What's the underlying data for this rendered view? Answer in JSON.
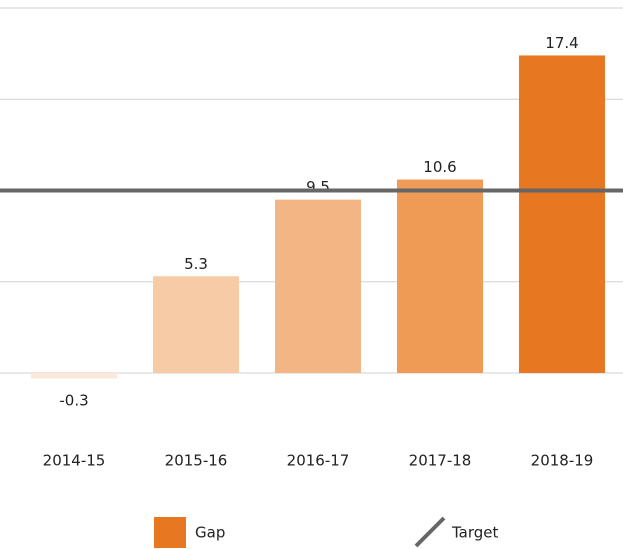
{
  "chart_data": {
    "type": "bar",
    "categories": [
      "2014-15",
      "2015-16",
      "2016-17",
      "2017-18",
      "2018-19"
    ],
    "series": [
      {
        "name": "Gap",
        "color": "#e87722",
        "values": [
          -0.3,
          5.3,
          9.5,
          10.6,
          17.4
        ],
        "colors": [
          "#fce8d8",
          "#f7cba5",
          "#f3b584",
          "#ef9a55",
          "#e87722"
        ]
      }
    ],
    "target": {
      "name": "Target",
      "value": 10,
      "color": "#666666"
    },
    "ylim": [
      0,
      20
    ],
    "yticks": [
      0,
      5,
      10,
      15,
      20
    ],
    "grid": true
  }
}
